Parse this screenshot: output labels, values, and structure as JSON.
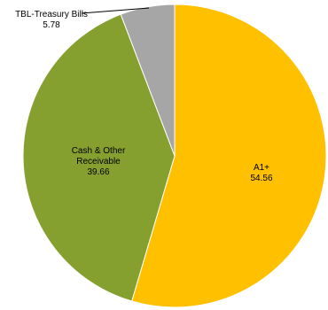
{
  "chart_data": {
    "type": "pie",
    "start_angle_deg": 0,
    "direction": "clockwise",
    "slices": [
      {
        "label": "A1+",
        "value": 54.56,
        "value_label": "54.56",
        "color": "#FFC000"
      },
      {
        "label": "Cash & Other Receivable",
        "value": 39.66,
        "value_label": "39.66",
        "color": "#86A030"
      },
      {
        "label": "TBL-Treasury Bills",
        "value": 5.78,
        "value_label": "5.78",
        "color": "#A6A6A6"
      }
    ]
  }
}
